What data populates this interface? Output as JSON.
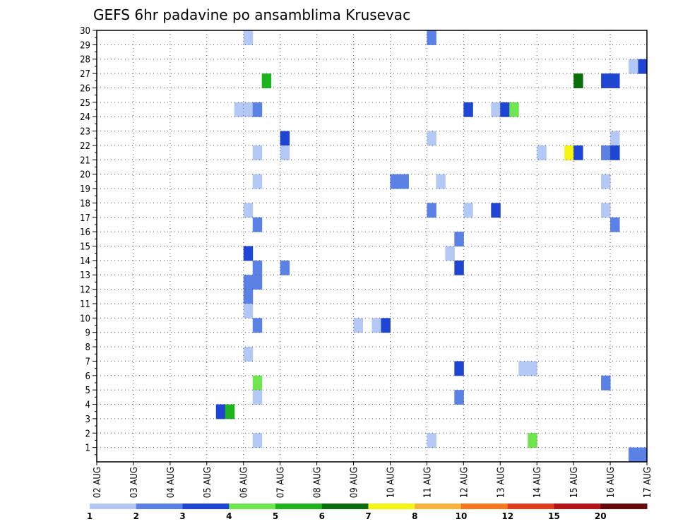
{
  "chart_data": {
    "type": "heatmap",
    "title": "GEFS 6hr padavine po ansamblima Krusevac",
    "x_tick_labels": [
      "02 AUG",
      "03 AUG",
      "04 AUG",
      "05 AUG",
      "06 AUG",
      "07 AUG",
      "08 AUG",
      "09 AUG",
      "10 AUG",
      "11 AUG",
      "12 AUG",
      "13 AUG",
      "14 AUG",
      "15 AUG",
      "16 AUG",
      "17 AUG"
    ],
    "x_start_label": "02 AUG",
    "steps_per_day": 4,
    "x_steps": 60,
    "y_tick_labels": [
      "1",
      "2",
      "3",
      "4",
      "5",
      "6",
      "7",
      "8",
      "9",
      "10",
      "11",
      "12",
      "13",
      "14",
      "15",
      "16",
      "17",
      "18",
      "19",
      "20",
      "21",
      "22",
      "23",
      "24",
      "25",
      "26",
      "27",
      "28",
      "29",
      "30"
    ],
    "ylim": [
      0,
      30
    ],
    "grid": true,
    "colorbar": {
      "orientation": "horizontal",
      "placement": "bottom",
      "labels": [
        "1",
        "2",
        "3",
        "4",
        "5",
        "6",
        "7",
        "8",
        "10",
        "12",
        "15",
        "20"
      ],
      "colors": [
        "#b4c8f5",
        "#5a82e6",
        "#1e46d2",
        "#6ee650",
        "#1eb41e",
        "#0a6e0a",
        "#f5f514",
        "#fab43c",
        "#f5781e",
        "#e13c1e",
        "#b41414",
        "#640a0a"
      ]
    },
    "cells": [
      {
        "step": 16,
        "member": 29,
        "color": "#b4c8f5"
      },
      {
        "step": 36,
        "member": 29,
        "color": "#5a82e6"
      },
      {
        "step": 59,
        "member": 27,
        "color": "#1e46d2"
      },
      {
        "step": 58,
        "member": 27,
        "color": "#b4c8f5"
      },
      {
        "step": 18,
        "member": 26,
        "color": "#1eb41e"
      },
      {
        "step": 52,
        "member": 26,
        "color": "#0a6e0a"
      },
      {
        "step": 55,
        "member": 26,
        "color": "#1e46d2"
      },
      {
        "step": 56,
        "member": 26,
        "color": "#1e46d2"
      },
      {
        "step": 15,
        "member": 24,
        "color": "#b4c8f5"
      },
      {
        "step": 16,
        "member": 24,
        "color": "#b4c8f5"
      },
      {
        "step": 17,
        "member": 24,
        "color": "#5a82e6"
      },
      {
        "step": 40,
        "member": 24,
        "color": "#1e46d2"
      },
      {
        "step": 43,
        "member": 24,
        "color": "#b4c8f5"
      },
      {
        "step": 44,
        "member": 24,
        "color": "#1e46d2"
      },
      {
        "step": 45,
        "member": 24,
        "color": "#6ee650"
      },
      {
        "step": 20,
        "member": 22,
        "color": "#1e46d2"
      },
      {
        "step": 36,
        "member": 22,
        "color": "#b4c8f5"
      },
      {
        "step": 56,
        "member": 22,
        "color": "#b4c8f5"
      },
      {
        "step": 17,
        "member": 21,
        "color": "#b4c8f5"
      },
      {
        "step": 20,
        "member": 21,
        "color": "#b4c8f5"
      },
      {
        "step": 48,
        "member": 21,
        "color": "#b4c8f5"
      },
      {
        "step": 51,
        "member": 21,
        "color": "#f5f514"
      },
      {
        "step": 52,
        "member": 21,
        "color": "#1e46d2"
      },
      {
        "step": 55,
        "member": 21,
        "color": "#5a82e6"
      },
      {
        "step": 56,
        "member": 21,
        "color": "#1e46d2"
      },
      {
        "step": 17,
        "member": 19,
        "color": "#b4c8f5"
      },
      {
        "step": 32,
        "member": 19,
        "color": "#5a82e6"
      },
      {
        "step": 33,
        "member": 19,
        "color": "#5a82e6"
      },
      {
        "step": 37,
        "member": 19,
        "color": "#b4c8f5"
      },
      {
        "step": 55,
        "member": 19,
        "color": "#b4c8f5"
      },
      {
        "step": 16,
        "member": 17,
        "color": "#b4c8f5"
      },
      {
        "step": 36,
        "member": 17,
        "color": "#5a82e6"
      },
      {
        "step": 40,
        "member": 17,
        "color": "#b4c8f5"
      },
      {
        "step": 43,
        "member": 17,
        "color": "#1e46d2"
      },
      {
        "step": 55,
        "member": 17,
        "color": "#b4c8f5"
      },
      {
        "step": 17,
        "member": 16,
        "color": "#5a82e6"
      },
      {
        "step": 56,
        "member": 16,
        "color": "#5a82e6"
      },
      {
        "step": 39,
        "member": 15,
        "color": "#5a82e6"
      },
      {
        "step": 16,
        "member": 14,
        "color": "#1e46d2"
      },
      {
        "step": 38,
        "member": 14,
        "color": "#b4c8f5"
      },
      {
        "step": 17,
        "member": 13,
        "color": "#5a82e6"
      },
      {
        "step": 20,
        "member": 13,
        "color": "#5a82e6"
      },
      {
        "step": 39,
        "member": 13,
        "color": "#1e46d2"
      },
      {
        "step": 16,
        "member": 12,
        "color": "#5a82e6"
      },
      {
        "step": 17,
        "member": 12,
        "color": "#5a82e6"
      },
      {
        "step": 16,
        "member": 11,
        "color": "#5a82e6"
      },
      {
        "step": 16,
        "member": 10,
        "color": "#b4c8f5"
      },
      {
        "step": 17,
        "member": 9,
        "color": "#5a82e6"
      },
      {
        "step": 28,
        "member": 9,
        "color": "#b4c8f5"
      },
      {
        "step": 30,
        "member": 9,
        "color": "#b4c8f5"
      },
      {
        "step": 31,
        "member": 9,
        "color": "#1e46d2"
      },
      {
        "step": 16,
        "member": 7,
        "color": "#b4c8f5"
      },
      {
        "step": 39,
        "member": 6,
        "color": "#1e46d2"
      },
      {
        "step": 46,
        "member": 6,
        "color": "#b4c8f5"
      },
      {
        "step": 47,
        "member": 6,
        "color": "#b4c8f5"
      },
      {
        "step": 17,
        "member": 5,
        "color": "#6ee650"
      },
      {
        "step": 55,
        "member": 5,
        "color": "#5a82e6"
      },
      {
        "step": 17,
        "member": 4,
        "color": "#b4c8f5"
      },
      {
        "step": 39,
        "member": 4,
        "color": "#5a82e6"
      },
      {
        "step": 13,
        "member": 3,
        "color": "#1e46d2"
      },
      {
        "step": 14,
        "member": 3,
        "color": "#1eb41e"
      },
      {
        "step": 17,
        "member": 1,
        "color": "#b4c8f5"
      },
      {
        "step": 36,
        "member": 1,
        "color": "#b4c8f5"
      },
      {
        "step": 47,
        "member": 1,
        "color": "#6ee650"
      },
      {
        "step": 58,
        "member": 0,
        "color": "#5a82e6"
      },
      {
        "step": 59,
        "member": 0,
        "color": "#5a82e6"
      }
    ]
  }
}
